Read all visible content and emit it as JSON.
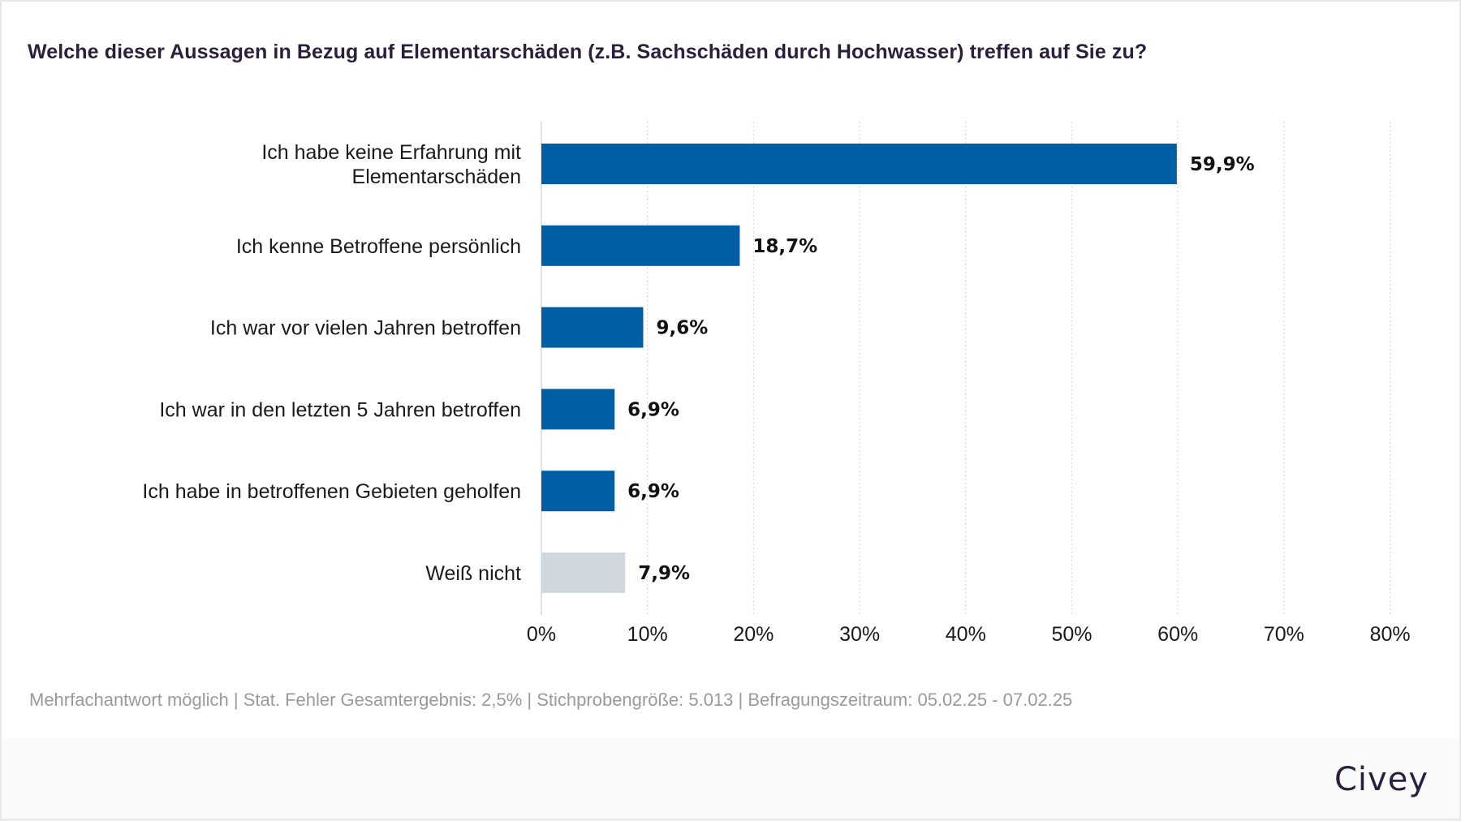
{
  "title": "Welche dieser Aussagen in Bezug auf Elementarschäden (z.B. Sachschäden durch Hochwasser) treffen auf Sie zu?",
  "note": "Mehrfachantwort möglich | Stat. Fehler Gesamtergebnis: 2,5% | Stichprobengröße: 5.013 | Befragungszeitraum: 05.02.25 - 07.02.25",
  "logo": "Civey",
  "colors": {
    "primary_bar": "#005ea5",
    "neutral_bar": "#cfd8df",
    "title": "#2a1f3d",
    "note": "#9a9a9a"
  },
  "chart_data": {
    "type": "bar",
    "orientation": "horizontal",
    "title": "Welche dieser Aussagen in Bezug auf Elementarschäden (z.B. Sachschäden durch Hochwasser) treffen auf Sie zu?",
    "xlabel": "",
    "ylabel": "",
    "xlim": [
      0,
      80
    ],
    "grid": true,
    "categories": [
      [
        "Ich habe keine Erfahrung mit",
        "Elementarschäden"
      ],
      [
        "Ich kenne Betroffene persönlich"
      ],
      [
        "Ich war vor vielen Jahren betroffen"
      ],
      [
        "Ich war in den letzten 5 Jahren betroffen"
      ],
      [
        "Ich habe in betroffenen Gebieten geholfen"
      ],
      [
        "Weiß nicht"
      ]
    ],
    "values": [
      59.9,
      18.7,
      9.6,
      6.9,
      6.9,
      7.9
    ],
    "value_labels": [
      "59,9%",
      "18,7%",
      "9,6%",
      "6,9%",
      "6,9%",
      "7,9%"
    ],
    "bar_kinds": [
      "primary",
      "primary",
      "primary",
      "primary",
      "primary",
      "neutral"
    ],
    "ticks": [
      0,
      10,
      20,
      30,
      40,
      50,
      60,
      70,
      80
    ],
    "tick_labels": [
      "0%",
      "10%",
      "20%",
      "30%",
      "40%",
      "50%",
      "60%",
      "70%",
      "80%"
    ]
  }
}
